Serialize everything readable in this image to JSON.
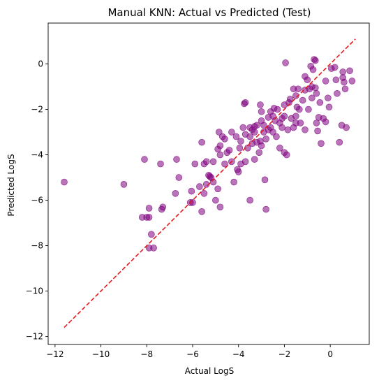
{
  "chart_data": {
    "type": "scatter",
    "title": "Manual KNN: Actual vs Predicted (Test)",
    "xlabel": "Actual LogS",
    "ylabel": "Predicted LogS",
    "xlim": [
      -12.3,
      1.7
    ],
    "ylim": [
      -12.35,
      1.8
    ],
    "xticks": [
      -12,
      -10,
      -8,
      -6,
      -4,
      -2,
      0
    ],
    "yticks": [
      -12,
      -10,
      -8,
      -6,
      -4,
      -2,
      0
    ],
    "grid": false,
    "legend": "none",
    "point_color": "#800080",
    "point_opacity": 0.55,
    "reference_line": {
      "x": [
        -11.6,
        1.1
      ],
      "y": [
        -11.6,
        1.1
      ],
      "color": "#e31a1c",
      "style": "dashed"
    },
    "points": [
      [
        -11.6,
        -5.2
      ],
      [
        -9.0,
        -5.3
      ],
      [
        -8.1,
        -4.2
      ],
      [
        -8.2,
        -6.75
      ],
      [
        -7.9,
        -6.75
      ],
      [
        -8.0,
        -6.75
      ],
      [
        -7.9,
        -6.35
      ],
      [
        -7.8,
        -7.5
      ],
      [
        -7.9,
        -8.1
      ],
      [
        -7.7,
        -8.1
      ],
      [
        -7.4,
        -4.4
      ],
      [
        -7.3,
        -6.3
      ],
      [
        -7.35,
        -6.4
      ],
      [
        -6.7,
        -4.2
      ],
      [
        -6.75,
        -5.7
      ],
      [
        -6.6,
        -5.0
      ],
      [
        -6.1,
        -6.1
      ],
      [
        -6.0,
        -6.1
      ],
      [
        -6.05,
        -5.6
      ],
      [
        -5.9,
        -4.4
      ],
      [
        -5.7,
        -5.4
      ],
      [
        -5.6,
        -3.45
      ],
      [
        -5.5,
        -4.4
      ],
      [
        -5.6,
        -6.5
      ],
      [
        -5.5,
        -5.7
      ],
      [
        -5.4,
        -5.3
      ],
      [
        -5.4,
        -4.3
      ],
      [
        -5.3,
        -4.9
      ],
      [
        -5.25,
        -4.95
      ],
      [
        -5.2,
        -5.0
      ],
      [
        -5.1,
        -5.2
      ],
      [
        -5.1,
        -4.3
      ],
      [
        -4.9,
        -5.5
      ],
      [
        -5.0,
        -6.0
      ],
      [
        -4.8,
        -6.3
      ],
      [
        -4.85,
        -3.0
      ],
      [
        -4.9,
        -3.75
      ],
      [
        -4.8,
        -3.6
      ],
      [
        -4.8,
        -4.0
      ],
      [
        -4.7,
        -3.2
      ],
      [
        -4.6,
        -3.3
      ],
      [
        -4.6,
        -4.4
      ],
      [
        -4.5,
        -3.9
      ],
      [
        -4.4,
        -3.8
      ],
      [
        -4.3,
        -4.3
      ],
      [
        -4.2,
        -5.2
      ],
      [
        -4.1,
        -3.2
      ],
      [
        -4.05,
        -4.65
      ],
      [
        -4.0,
        -4.75
      ],
      [
        -3.95,
        -3.7
      ],
      [
        -3.9,
        -4.4
      ],
      [
        -3.8,
        -2.8
      ],
      [
        -3.7,
        -1.7
      ],
      [
        -3.75,
        -1.75
      ],
      [
        -3.7,
        -3.1
      ],
      [
        -3.7,
        -4.3
      ],
      [
        -3.6,
        -3.7
      ],
      [
        -3.5,
        -2.8
      ],
      [
        -3.4,
        -2.9
      ],
      [
        -3.5,
        -3.2
      ],
      [
        -3.5,
        -6.0
      ],
      [
        -3.4,
        -3.5
      ],
      [
        -3.3,
        -4.2
      ],
      [
        -3.3,
        -3.0
      ],
      [
        -3.2,
        -3.45
      ],
      [
        -3.2,
        -2.7
      ],
      [
        -3.1,
        -3.9
      ],
      [
        -3.05,
        -3.4
      ],
      [
        -3.0,
        -3.6
      ],
      [
        -3.0,
        -2.5
      ],
      [
        -3.05,
        -1.8
      ],
      [
        -3.0,
        -2.1
      ],
      [
        -2.9,
        -2.7
      ],
      [
        -2.9,
        -3.0
      ],
      [
        -2.85,
        -5.1
      ],
      [
        -2.8,
        -6.4
      ],
      [
        -2.8,
        -3.3
      ],
      [
        -2.7,
        -2.9
      ],
      [
        -2.6,
        -2.8
      ],
      [
        -2.6,
        -2.1
      ],
      [
        -2.5,
        -2.3
      ],
      [
        -2.5,
        -3.0
      ],
      [
        -2.4,
        -2.5
      ],
      [
        -2.3,
        -2.0
      ],
      [
        -2.35,
        -3.2
      ],
      [
        -2.2,
        -2.6
      ],
      [
        -2.2,
        -3.7
      ],
      [
        -2.1,
        -2.8
      ],
      [
        -2.0,
        -1.8
      ],
      [
        -2.0,
        -2.3
      ],
      [
        -2.0,
        -3.9
      ],
      [
        -1.9,
        -4.0
      ],
      [
        -1.95,
        0.05
      ],
      [
        -1.85,
        -2.9
      ],
      [
        -1.8,
        -1.7
      ],
      [
        -1.7,
        -2.4
      ],
      [
        -1.6,
        -1.1
      ],
      [
        -1.6,
        -2.8
      ],
      [
        -1.5,
        -2.3
      ],
      [
        -1.5,
        -1.4
      ],
      [
        -1.45,
        -1.9
      ],
      [
        -1.4,
        -1.1
      ],
      [
        -1.35,
        -2.0
      ],
      [
        -1.3,
        -2.6
      ],
      [
        -1.2,
        -1.6
      ],
      [
        -1.1,
        -2.9
      ],
      [
        -1.1,
        -1.15
      ],
      [
        -1.1,
        -0.55
      ],
      [
        -1.0,
        -0.7
      ],
      [
        -0.95,
        -2.0
      ],
      [
        -0.9,
        -1.1
      ],
      [
        -0.85,
        -0.1
      ],
      [
        -0.8,
        -1.0
      ],
      [
        -0.75,
        -0.25
      ],
      [
        -0.7,
        0.2
      ],
      [
        -0.65,
        0.15
      ],
      [
        -0.65,
        -1.05
      ],
      [
        -0.6,
        -2.6
      ],
      [
        -0.55,
        -2.95
      ],
      [
        -0.5,
        -2.35
      ],
      [
        -0.45,
        -1.7
      ],
      [
        -0.4,
        -3.5
      ],
      [
        -0.3,
        -2.4
      ],
      [
        -0.2,
        -0.75
      ],
      [
        -0.2,
        -2.55
      ],
      [
        -0.1,
        -1.5
      ],
      [
        -0.05,
        -1.9
      ],
      [
        0.05,
        -0.2
      ],
      [
        0.2,
        -0.15
      ],
      [
        0.25,
        -0.7
      ],
      [
        0.3,
        -1.3
      ],
      [
        0.4,
        -3.45
      ],
      [
        0.5,
        -2.7
      ],
      [
        0.55,
        -0.35
      ],
      [
        0.6,
        -0.8
      ],
      [
        0.65,
        -1.1
      ],
      [
        0.55,
        -0.6
      ],
      [
        0.7,
        -2.8
      ],
      [
        0.85,
        -0.3
      ],
      [
        0.95,
        -0.75
      ],
      [
        -0.6,
        -1.3
      ],
      [
        -0.8,
        -1.5
      ],
      [
        -1.5,
        -2.6
      ],
      [
        -2.1,
        -2.4
      ],
      [
        -2.7,
        -2.35
      ],
      [
        -3.3,
        -2.75
      ],
      [
        -3.9,
        -3.4
      ],
      [
        -4.3,
        -3.0
      ],
      [
        -2.45,
        -1.95
      ],
      [
        -1.75,
        -1.55
      ]
    ]
  }
}
